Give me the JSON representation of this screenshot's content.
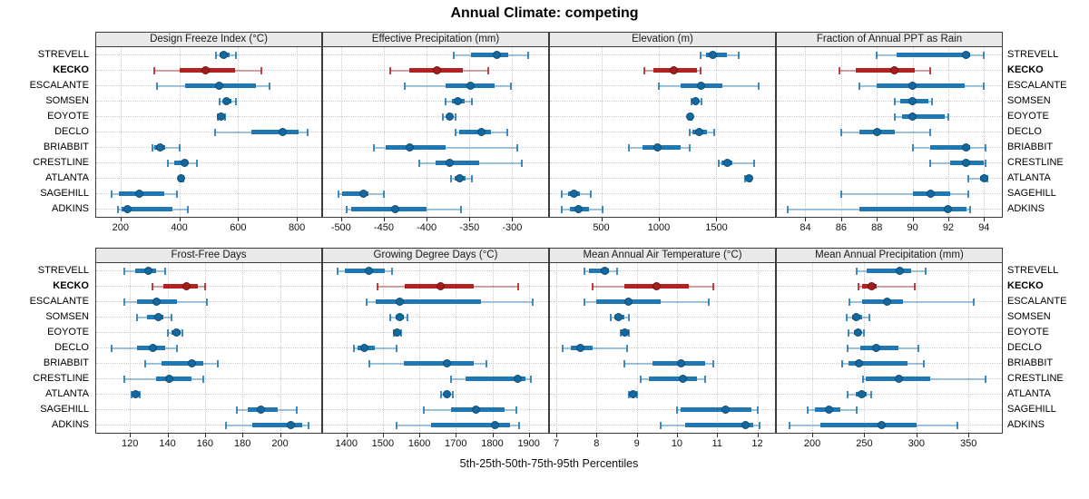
{
  "title": "Annual Climate: competing",
  "caption": "5th-25th-50th-75th-95th Percentiles",
  "stations": [
    "STREVELL",
    "KECKO",
    "ESCALANTE",
    "SOMSEN",
    "EOYOTE",
    "DECLO",
    "BRIABBIT",
    "CRESTLINE",
    "ATLANTA",
    "SAGEHILL",
    "ADKINS"
  ],
  "highlight_station": "KECKO",
  "colors": {
    "series": "#1f77b4",
    "series_dot": "#15689e",
    "series_dot_edge": "#0e4d78",
    "highlight": "#b22222",
    "highlight_dot": "#a31d1d",
    "highlight_dot_edge": "#701111",
    "header_bg": "#e9e9e9",
    "grid": "#cccccc",
    "panel_border": "#3c3c3c"
  },
  "chart_data": {
    "type": "dot-whisker-percentiles",
    "percentiles": [
      5,
      25,
      50,
      75,
      95
    ],
    "note": "Each row per station: [p5, p25, p50, p75, p95]; dot = median, thick bar = 25th-75th, thin line = 5th-95th",
    "panels": [
      {
        "title": "Design Freeze Index (°C)",
        "row": 0,
        "col": 0,
        "xlim": [
          117,
          883
        ],
        "ticks": [
          200,
          400,
          600,
          800
        ],
        "values": [
          [
            525,
            537,
            552,
            571,
            592
          ],
          [
            315,
            400,
            488,
            590,
            678
          ],
          [
            323,
            420,
            537,
            660,
            708
          ],
          [
            537,
            552,
            561,
            577,
            592
          ],
          [
            531,
            537,
            543,
            549,
            555
          ],
          [
            522,
            644,
            751,
            806,
            837
          ],
          [
            307,
            316,
            335,
            353,
            402
          ],
          [
            362,
            384,
            417,
            430,
            460
          ],
          [
            402,
            404,
            406,
            410,
            414
          ],
          [
            169,
            194,
            264,
            350,
            393
          ],
          [
            190,
            205,
            225,
            375,
            430
          ]
        ]
      },
      {
        "title": "Effective Precipitation (mm)",
        "row": 0,
        "col": 1,
        "xlim": [
          -521,
          -258
        ],
        "ticks": [
          -500,
          -450,
          -400,
          -350,
          -300
        ],
        "values": [
          [
            -368,
            -348,
            -318,
            -305,
            -281
          ],
          [
            -443,
            -420,
            -388,
            -358,
            -328
          ],
          [
            -426,
            -378,
            -349,
            -321,
            -301
          ],
          [
            -378,
            -370,
            -364,
            -356,
            -347
          ],
          [
            -381,
            -377,
            -373,
            -370,
            -366
          ],
          [
            -366,
            -362,
            -336,
            -325,
            -306
          ],
          [
            -462,
            -448,
            -420,
            -378,
            -294
          ],
          [
            -409,
            -390,
            -373,
            -339,
            -289
          ],
          [
            -372,
            -367,
            -361,
            -355,
            -347
          ],
          [
            -503,
            -499,
            -474,
            -468,
            -450
          ],
          [
            -493,
            -488,
            -437,
            -400,
            -360
          ]
        ]
      },
      {
        "title": "Elevation (m)",
        "row": 0,
        "col": 2,
        "xlim": [
          55,
          2008
        ],
        "ticks": [
          500,
          1000,
          1500
        ],
        "values": [
          [
            1360,
            1410,
            1470,
            1590,
            1695
          ],
          [
            875,
            950,
            1130,
            1330,
            1360
          ],
          [
            1000,
            1190,
            1367,
            1550,
            1870
          ],
          [
            1281,
            1300,
            1320,
            1345,
            1370
          ],
          [
            1263,
            1268,
            1273,
            1279,
            1286
          ],
          [
            1266,
            1290,
            1352,
            1420,
            1484
          ],
          [
            742,
            860,
            992,
            1190,
            1266
          ],
          [
            1516,
            1540,
            1594,
            1641,
            1828
          ],
          [
            1750,
            1770,
            1781,
            1790,
            1797
          ],
          [
            156,
            211,
            266,
            313,
            406
          ],
          [
            156,
            227,
            305,
            391,
            508
          ]
        ]
      },
      {
        "title": "Fraction of Annual PPT as Rain",
        "row": 0,
        "col": 3,
        "xlim": [
          82.4,
          95
        ],
        "ticks": [
          84,
          86,
          88,
          90,
          92,
          94
        ],
        "values": [
          [
            88,
            89.1,
            93,
            93.2,
            94
          ],
          [
            85.9,
            86.8,
            89,
            90.1,
            91
          ],
          [
            87,
            88,
            90,
            92.9,
            94
          ],
          [
            89,
            89.3,
            90,
            90.9,
            91.1
          ],
          [
            89,
            89.4,
            90,
            91.8,
            92
          ],
          [
            86,
            87,
            88,
            89,
            91
          ],
          [
            90,
            91,
            93,
            93.2,
            94.1
          ],
          [
            91,
            92.1,
            93,
            94,
            94.1
          ],
          [
            93.1,
            93.8,
            94,
            94.1,
            94.2
          ],
          [
            86,
            90,
            91,
            92.1,
            93.1
          ],
          [
            83,
            87,
            92,
            93,
            93.2
          ]
        ]
      },
      {
        "title": "Frost-Free Days",
        "row": 1,
        "col": 0,
        "xlim": [
          102,
          222
        ],
        "ticks": [
          120,
          140,
          160,
          180,
          200
        ],
        "values": [
          [
            117,
            123,
            130,
            134,
            139
          ],
          [
            132,
            138,
            150,
            156,
            160
          ],
          [
            117,
            124,
            134,
            145,
            161
          ],
          [
            124,
            129,
            135,
            138,
            142
          ],
          [
            140,
            142,
            145,
            147,
            148
          ],
          [
            110,
            124,
            132,
            139,
            145
          ],
          [
            128,
            137,
            153,
            159,
            167
          ],
          [
            117,
            134,
            141,
            153,
            159
          ],
          [
            121,
            122,
            123,
            124,
            125
          ],
          [
            177,
            183,
            190,
            199,
            209
          ],
          [
            171,
            185,
            206,
            212,
            215
          ]
        ]
      },
      {
        "title": "Growing Degree Days (°C)",
        "row": 1,
        "col": 1,
        "xlim": [
          1336,
          1953
        ],
        "ticks": [
          1400,
          1500,
          1600,
          1700,
          1800,
          1900
        ],
        "values": [
          [
            1375,
            1395,
            1462,
            1505,
            1525
          ],
          [
            1485,
            1560,
            1657,
            1750,
            1870
          ],
          [
            1455,
            1480,
            1546,
            1770,
            1910
          ],
          [
            1520,
            1535,
            1546,
            1557,
            1568
          ],
          [
            1529,
            1533,
            1538,
            1545,
            1551
          ],
          [
            1420,
            1430,
            1449,
            1477,
            1538
          ],
          [
            1464,
            1558,
            1676,
            1750,
            1783
          ],
          [
            1686,
            1726,
            1870,
            1891,
            1906
          ],
          [
            1660,
            1670,
            1676,
            1684,
            1691
          ],
          [
            1613,
            1686,
            1755,
            1834,
            1866
          ],
          [
            1538,
            1632,
            1807,
            1849,
            1874
          ]
        ]
      },
      {
        "title": "Mean Annual Air Temperature (°C)",
        "row": 1,
        "col": 2,
        "xlim": [
          6.84,
          12.44
        ],
        "ticks": [
          7,
          8,
          9,
          10,
          11,
          12
        ],
        "values": [
          [
            7.7,
            7.8,
            8.2,
            8.3,
            8.5
          ],
          [
            7.9,
            8.7,
            9.5,
            10.3,
            10.9
          ],
          [
            7.7,
            8.0,
            8.8,
            9.6,
            10.8
          ],
          [
            8.35,
            8.45,
            8.55,
            8.7,
            8.8
          ],
          [
            8.6,
            8.65,
            8.7,
            8.75,
            8.8
          ],
          [
            7.15,
            7.35,
            7.6,
            7.9,
            8.75
          ],
          [
            8.7,
            9.4,
            10.1,
            10.7,
            10.9
          ],
          [
            9.1,
            9.3,
            10.15,
            10.5,
            10.7
          ],
          [
            8.8,
            8.85,
            8.9,
            8.95,
            9.0
          ],
          [
            10.0,
            10.1,
            11.2,
            11.85,
            12.0
          ],
          [
            9.6,
            10.2,
            11.7,
            11.9,
            12.05
          ]
        ]
      },
      {
        "title": "Mean Annual Precipitation (mm)",
        "row": 1,
        "col": 3,
        "xlim": [
          166,
          382
        ],
        "ticks": [
          200,
          250,
          300,
          350
        ],
        "values": [
          [
            243,
            252,
            284,
            295,
            309
          ],
          [
            244,
            248,
            257,
            262,
            298
          ],
          [
            236,
            248,
            272,
            287,
            355
          ],
          [
            233,
            238,
            242,
            248,
            255
          ],
          [
            235,
            240,
            244,
            247,
            250
          ],
          [
            234,
            246,
            261,
            283,
            302
          ],
          [
            229,
            235,
            245,
            291,
            307
          ],
          [
            249,
            251,
            283,
            313,
            366
          ],
          [
            234,
            242,
            247,
            252,
            257
          ],
          [
            196,
            203,
            216,
            227,
            243
          ],
          [
            178,
            208,
            267,
            300,
            339
          ]
        ]
      }
    ]
  }
}
